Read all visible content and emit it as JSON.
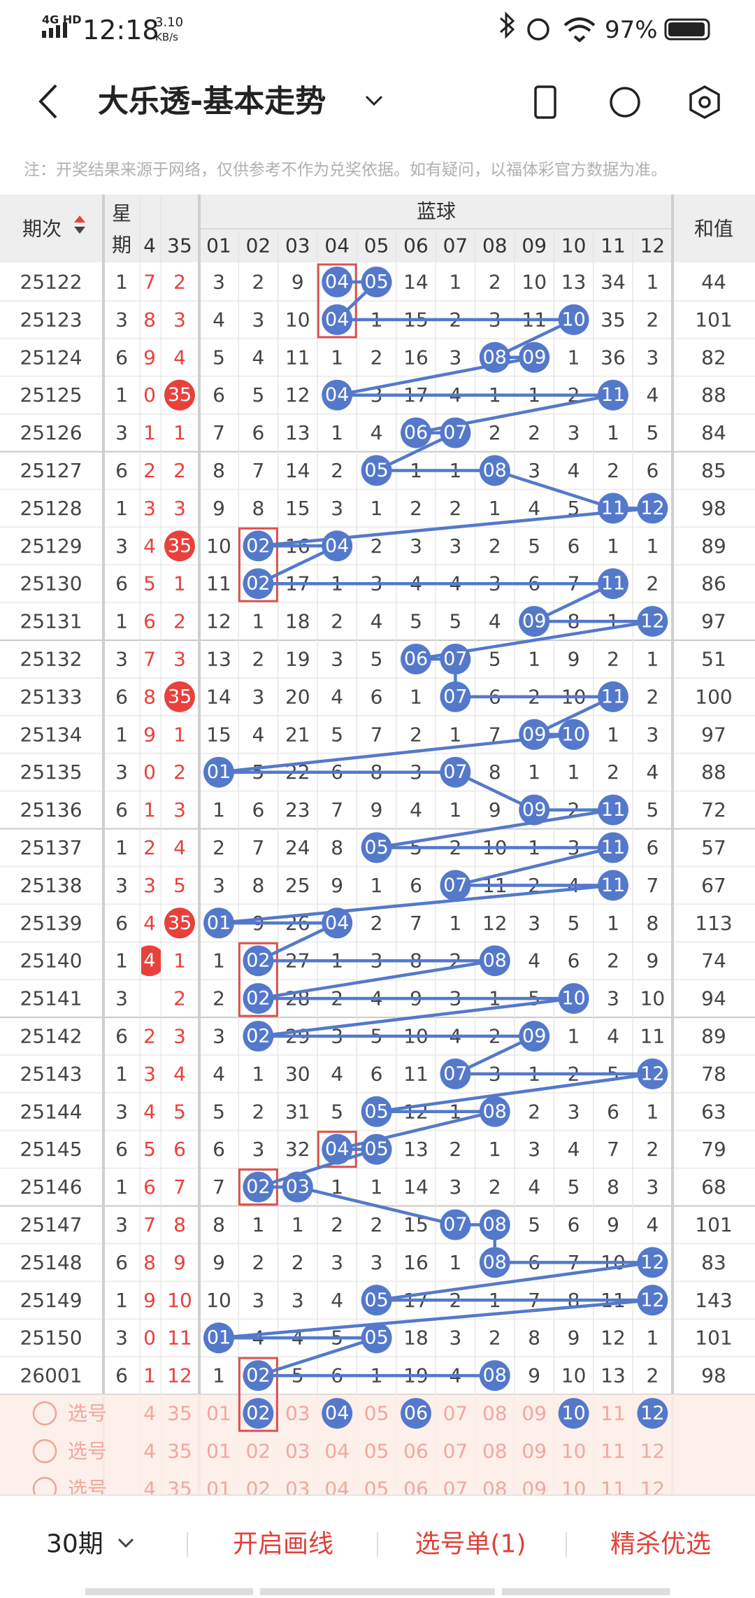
{
  "status": {
    "network": "4G HD",
    "time": "12:18",
    "speed": "3.10",
    "speed_unit": "KB/s",
    "battery": "97%"
  },
  "header": {
    "title": "大乐透-基本走势"
  },
  "note": "注：开奖结果来源于网络，仅供参考不作为兑奖依据。如有疑问，以福体彩官方数据为准。",
  "table": {
    "issue_header": "期次",
    "week_header": [
      "星",
      "期"
    ],
    "blue_header": "蓝球",
    "sum_header": "和值",
    "front_cols": [
      "4",
      "35"
    ],
    "blue_cols": [
      "01",
      "02",
      "03",
      "04",
      "05",
      "06",
      "07",
      "08",
      "09",
      "10",
      "11",
      "12"
    ],
    "rows": [
      {
        "issue": "25122",
        "week": "1",
        "front": [
          "7",
          "2"
        ],
        "front_hit_cols": [],
        "blue": [
          "3",
          "2",
          "9",
          "04",
          "05",
          "14",
          "1",
          "2",
          "10",
          "13",
          "34",
          "1"
        ],
        "blue_hit_cols": [
          3,
          4
        ],
        "sum": "44"
      },
      {
        "issue": "25123",
        "week": "3",
        "front": [
          "8",
          "3"
        ],
        "front_hit_cols": [],
        "blue": [
          "4",
          "3",
          "10",
          "04",
          "1",
          "15",
          "2",
          "3",
          "11",
          "10",
          "35",
          "2"
        ],
        "blue_hit_cols": [
          3,
          9
        ],
        "sum": "101"
      },
      {
        "issue": "25124",
        "week": "6",
        "front": [
          "9",
          "4"
        ],
        "front_hit_cols": [],
        "blue": [
          "5",
          "4",
          "11",
          "1",
          "2",
          "16",
          "3",
          "08",
          "09",
          "1",
          "36",
          "3"
        ],
        "blue_hit_cols": [
          7,
          8
        ],
        "sum": "82"
      },
      {
        "issue": "25125",
        "week": "1",
        "front": [
          "0",
          "35"
        ],
        "front_hit_cols": [
          1
        ],
        "blue": [
          "6",
          "5",
          "12",
          "04",
          "3",
          "17",
          "4",
          "1",
          "1",
          "2",
          "11",
          "4"
        ],
        "blue_hit_cols": [
          3,
          10
        ],
        "sum": "88"
      },
      {
        "issue": "25126",
        "week": "3",
        "front": [
          "1",
          "1"
        ],
        "front_hit_cols": [],
        "blue": [
          "7",
          "6",
          "13",
          "1",
          "4",
          "06",
          "07",
          "2",
          "2",
          "3",
          "1",
          "5"
        ],
        "blue_hit_cols": [
          5,
          6
        ],
        "sum": "84"
      },
      {
        "issue": "25127",
        "week": "6",
        "front": [
          "2",
          "2"
        ],
        "front_hit_cols": [],
        "blue": [
          "8",
          "7",
          "14",
          "2",
          "05",
          "1",
          "1",
          "08",
          "3",
          "4",
          "2",
          "6"
        ],
        "blue_hit_cols": [
          4,
          7
        ],
        "sum": "85"
      },
      {
        "issue": "25128",
        "week": "1",
        "front": [
          "3",
          "3"
        ],
        "front_hit_cols": [],
        "blue": [
          "9",
          "8",
          "15",
          "3",
          "1",
          "2",
          "2",
          "1",
          "4",
          "5",
          "11",
          "12"
        ],
        "blue_hit_cols": [
          10,
          11
        ],
        "sum": "98"
      },
      {
        "issue": "25129",
        "week": "3",
        "front": [
          "4",
          "35"
        ],
        "front_hit_cols": [
          1
        ],
        "blue": [
          "10",
          "02",
          "16",
          "04",
          "2",
          "3",
          "3",
          "2",
          "5",
          "6",
          "1",
          "1"
        ],
        "blue_hit_cols": [
          1,
          3
        ],
        "sum": "89"
      },
      {
        "issue": "25130",
        "week": "6",
        "front": [
          "5",
          "1"
        ],
        "front_hit_cols": [],
        "blue": [
          "11",
          "02",
          "17",
          "1",
          "3",
          "4",
          "4",
          "3",
          "6",
          "7",
          "11",
          "2"
        ],
        "blue_hit_cols": [
          1,
          10
        ],
        "sum": "86"
      },
      {
        "issue": "25131",
        "week": "1",
        "front": [
          "6",
          "2"
        ],
        "front_hit_cols": [],
        "blue": [
          "12",
          "1",
          "18",
          "2",
          "4",
          "5",
          "5",
          "4",
          "09",
          "8",
          "1",
          "12"
        ],
        "blue_hit_cols": [
          8,
          11
        ],
        "sum": "97"
      },
      {
        "issue": "25132",
        "week": "3",
        "front": [
          "7",
          "3"
        ],
        "front_hit_cols": [],
        "blue": [
          "13",
          "2",
          "19",
          "3",
          "5",
          "06",
          "07",
          "5",
          "1",
          "9",
          "2",
          "1"
        ],
        "blue_hit_cols": [
          5,
          6
        ],
        "sum": "51"
      },
      {
        "issue": "25133",
        "week": "6",
        "front": [
          "8",
          "35"
        ],
        "front_hit_cols": [
          1
        ],
        "blue": [
          "14",
          "3",
          "20",
          "4",
          "6",
          "1",
          "07",
          "6",
          "2",
          "10",
          "11",
          "2"
        ],
        "blue_hit_cols": [
          6,
          10
        ],
        "sum": "100"
      },
      {
        "issue": "25134",
        "week": "1",
        "front": [
          "9",
          "1"
        ],
        "front_hit_cols": [],
        "blue": [
          "15",
          "4",
          "21",
          "5",
          "7",
          "2",
          "1",
          "7",
          "09",
          "10",
          "1",
          "3"
        ],
        "blue_hit_cols": [
          8,
          9
        ],
        "sum": "97"
      },
      {
        "issue": "25135",
        "week": "3",
        "front": [
          "0",
          "2"
        ],
        "front_hit_cols": [],
        "blue": [
          "01",
          "5",
          "22",
          "6",
          "8",
          "3",
          "07",
          "8",
          "1",
          "1",
          "2",
          "4"
        ],
        "blue_hit_cols": [
          0,
          6
        ],
        "sum": "88"
      },
      {
        "issue": "25136",
        "week": "6",
        "front": [
          "1",
          "3"
        ],
        "front_hit_cols": [],
        "blue": [
          "1",
          "6",
          "23",
          "7",
          "9",
          "4",
          "1",
          "9",
          "09",
          "2",
          "11",
          "5"
        ],
        "blue_hit_cols": [
          8,
          10
        ],
        "sum": "72"
      },
      {
        "issue": "25137",
        "week": "1",
        "front": [
          "2",
          "4"
        ],
        "front_hit_cols": [],
        "blue": [
          "2",
          "7",
          "24",
          "8",
          "05",
          "5",
          "2",
          "10",
          "1",
          "3",
          "11",
          "6"
        ],
        "blue_hit_cols": [
          4,
          10
        ],
        "sum": "57"
      },
      {
        "issue": "25138",
        "week": "3",
        "front": [
          "3",
          "5"
        ],
        "front_hit_cols": [],
        "blue": [
          "3",
          "8",
          "25",
          "9",
          "1",
          "6",
          "07",
          "11",
          "2",
          "4",
          "11",
          "7"
        ],
        "blue_hit_cols": [
          6,
          10
        ],
        "sum": "67"
      },
      {
        "issue": "25139",
        "week": "6",
        "front": [
          "4",
          "35"
        ],
        "front_hit_cols": [
          1
        ],
        "blue": [
          "01",
          "9",
          "26",
          "04",
          "2",
          "7",
          "1",
          "12",
          "3",
          "5",
          "1",
          "8"
        ],
        "blue_hit_cols": [
          0,
          3
        ],
        "sum": "113"
      },
      {
        "issue": "25140",
        "week": "1",
        "front": [
          "4",
          "1"
        ],
        "front_hit_cols": [
          0
        ],
        "blue": [
          "1",
          "02",
          "27",
          "1",
          "3",
          "8",
          "2",
          "08",
          "4",
          "6",
          "2",
          "9"
        ],
        "blue_hit_cols": [
          1,
          7
        ],
        "sum": "74"
      },
      {
        "issue": "25141",
        "week": "3",
        "front": [
          null,
          "2"
        ],
        "front_hit_cols": [],
        "blue": [
          "2",
          "02",
          "28",
          "2",
          "4",
          "9",
          "3",
          "1",
          "5",
          "10",
          "3",
          "10"
        ],
        "blue_hit_cols": [
          1,
          9
        ],
        "sum": "94"
      },
      {
        "issue": "25142",
        "week": "6",
        "front": [
          "2",
          "3"
        ],
        "front_hit_cols": [],
        "blue": [
          "3",
          "02",
          "29",
          "3",
          "5",
          "10",
          "4",
          "2",
          "09",
          "1",
          "4",
          "11"
        ],
        "blue_hit_cols": [
          1,
          8
        ],
        "sum": "89"
      },
      {
        "issue": "25143",
        "week": "1",
        "front": [
          "3",
          "4"
        ],
        "front_hit_cols": [],
        "blue": [
          "4",
          "1",
          "30",
          "4",
          "6",
          "11",
          "07",
          "3",
          "1",
          "2",
          "5",
          "12"
        ],
        "blue_hit_cols": [
          6,
          11
        ],
        "sum": "78"
      },
      {
        "issue": "25144",
        "week": "3",
        "front": [
          "4",
          "5"
        ],
        "front_hit_cols": [],
        "blue": [
          "5",
          "2",
          "31",
          "5",
          "05",
          "12",
          "1",
          "08",
          "2",
          "3",
          "6",
          "1"
        ],
        "blue_hit_cols": [
          4,
          7
        ],
        "sum": "63"
      },
      {
        "issue": "25145",
        "week": "6",
        "front": [
          "5",
          "6"
        ],
        "front_hit_cols": [],
        "blue": [
          "6",
          "3",
          "32",
          "04",
          "05",
          "13",
          "2",
          "1",
          "3",
          "4",
          "7",
          "2"
        ],
        "blue_hit_cols": [
          3,
          4
        ],
        "sum": "79"
      },
      {
        "issue": "25146",
        "week": "1",
        "front": [
          "6",
          "7"
        ],
        "front_hit_cols": [],
        "blue": [
          "7",
          "02",
          "03",
          "1",
          "1",
          "14",
          "3",
          "2",
          "4",
          "5",
          "8",
          "3"
        ],
        "blue_hit_cols": [
          1,
          2
        ],
        "sum": "68"
      },
      {
        "issue": "25147",
        "week": "3",
        "front": [
          "7",
          "8"
        ],
        "front_hit_cols": [],
        "blue": [
          "8",
          "1",
          "1",
          "2",
          "2",
          "15",
          "07",
          "08",
          "5",
          "6",
          "9",
          "4"
        ],
        "blue_hit_cols": [
          6,
          7
        ],
        "sum": "101"
      },
      {
        "issue": "25148",
        "week": "6",
        "front": [
          "8",
          "9"
        ],
        "front_hit_cols": [],
        "blue": [
          "9",
          "2",
          "2",
          "3",
          "3",
          "16",
          "1",
          "08",
          "6",
          "7",
          "10",
          "12"
        ],
        "blue_hit_cols": [
          7,
          11
        ],
        "sum": "83"
      },
      {
        "issue": "25149",
        "week": "1",
        "front": [
          "9",
          "10"
        ],
        "front_hit_cols": [],
        "blue": [
          "10",
          "3",
          "3",
          "4",
          "05",
          "17",
          "2",
          "1",
          "7",
          "8",
          "11",
          "12"
        ],
        "blue_hit_cols": [
          4,
          11
        ],
        "sum": "143"
      },
      {
        "issue": "25150",
        "week": "3",
        "front": [
          "0",
          "11"
        ],
        "front_hit_cols": [],
        "blue": [
          "01",
          "4",
          "4",
          "5",
          "05",
          "18",
          "3",
          "2",
          "8",
          "9",
          "12",
          "1"
        ],
        "blue_hit_cols": [
          0,
          4
        ],
        "sum": "101"
      },
      {
        "issue": "26001",
        "week": "6",
        "front": [
          "1",
          "12"
        ],
        "front_hit_cols": [],
        "blue": [
          "1",
          "02",
          "5",
          "6",
          "1",
          "19",
          "4",
          "08",
          "9",
          "10",
          "13",
          "2"
        ],
        "blue_hit_cols": [
          1,
          7
        ],
        "sum": "98"
      }
    ],
    "select_rows": [
      {
        "label": "选号",
        "front": [
          "4",
          "35"
        ],
        "blue": [
          "01",
          "02",
          "03",
          "04",
          "05",
          "06",
          "07",
          "08",
          "09",
          "10",
          "11",
          "12"
        ],
        "picked_cols": [
          1,
          3,
          5,
          9,
          11
        ]
      },
      {
        "label": "选号",
        "front": [
          "4",
          "35"
        ],
        "blue": [
          "01",
          "02",
          "03",
          "04",
          "05",
          "06",
          "07",
          "08",
          "09",
          "10",
          "11",
          "12"
        ],
        "picked_cols": []
      },
      {
        "label": "选号",
        "front": [
          "4",
          "35"
        ],
        "blue": [
          "01",
          "02",
          "03",
          "04",
          "05",
          "06",
          "07",
          "08",
          "09",
          "10",
          "11",
          "12"
        ],
        "picked_cols": []
      }
    ]
  },
  "bottom_bar": {
    "period": "30期",
    "draw_line": "开启画线",
    "pick_list": "选号单(1)",
    "refine": "精杀优选"
  }
}
